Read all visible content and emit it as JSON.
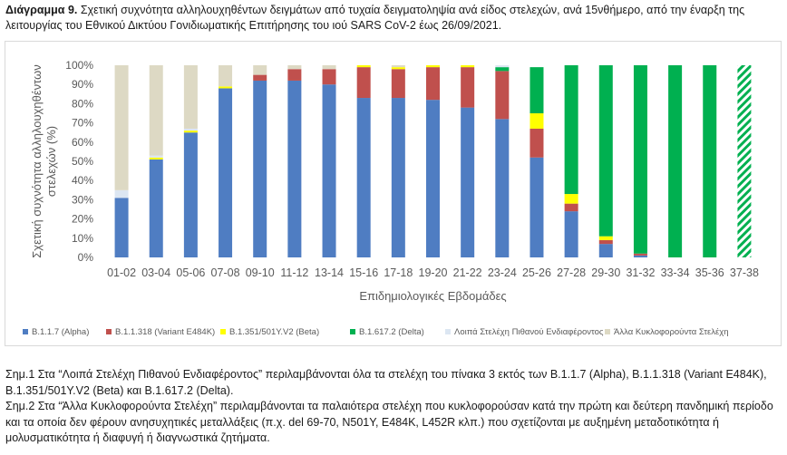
{
  "title": {
    "prefix": "Διάγραμμα 9.",
    "text": "Σχετική συχνότητα αλληλουχηθέντων δειγμάτων από τυχαία δειγματοληψία ανά είδος στελεχών, ανά 15νθήμερο, από την έναρξη της λειτουργίας του Εθνικού Δικτύου Γονιδιωματικής Επιτήρησης του ιού SARS CoV-2 έως 26/09/2021."
  },
  "chart_data": {
    "type": "bar",
    "stacked": true,
    "xlabel": "Επιδημιολογικές Εβδομάδες",
    "ylabel": "Σχετική συχνότητα αλληλουχηθέντων στελεχών (%)",
    "ylim": [
      0,
      100
    ],
    "yticks": [
      "0%",
      "10%",
      "20%",
      "30%",
      "40%",
      "50%",
      "60%",
      "70%",
      "80%",
      "90%",
      "100%"
    ],
    "grid": false,
    "legend_position": "bottom",
    "categories": [
      "01-02",
      "03-04",
      "05-06",
      "07-08",
      "09-10",
      "11-12",
      "13-14",
      "15-16",
      "17-18",
      "19-20",
      "21-22",
      "23-24",
      "25-26",
      "27-28",
      "29-30",
      "31-32",
      "33-34",
      "35-36",
      "37-38"
    ],
    "series": [
      {
        "name": "B.1.1.7 (Alpha)",
        "color": "#4f7dc2",
        "values": [
          31,
          51,
          65,
          88,
          92,
          92,
          90,
          83,
          83,
          82,
          78,
          72,
          52,
          24,
          7,
          1,
          0,
          0,
          0
        ]
      },
      {
        "name": "B.1.1.318 (Variant E484K)",
        "color": "#c0504d",
        "values": [
          0,
          0,
          0,
          0,
          3,
          6,
          8,
          16,
          15,
          17,
          21,
          25,
          15,
          4,
          2,
          1,
          0,
          0,
          0
        ]
      },
      {
        "name": "B.1.351/501Y.V2 (Beta)",
        "color": "#ffff00",
        "values": [
          0,
          1,
          1,
          1,
          0,
          0,
          0,
          1,
          1,
          1,
          1,
          0,
          8,
          5,
          2,
          0,
          0,
          0,
          0
        ]
      },
      {
        "name": "B.1.617.2 (Delta)",
        "color": "#00b050",
        "values": [
          0,
          0,
          0,
          0,
          0,
          0,
          0,
          0,
          0,
          0,
          0,
          2,
          24,
          67,
          89,
          98,
          100,
          100,
          100
        ]
      },
      {
        "name": "Λοιπά Στελέχη Πιθανού Ενδιαφέροντος",
        "color": "#dce6f2",
        "values": [
          4,
          1,
          1,
          0,
          0,
          0,
          0,
          0,
          0,
          0,
          0,
          1,
          0,
          0,
          0,
          0,
          0,
          0,
          0
        ]
      },
      {
        "name": "Άλλα Κυκλοφορούντα Στελέχη",
        "color": "#ddd9c4",
        "values": [
          65,
          47,
          33,
          11,
          5,
          2,
          2,
          0,
          1,
          0,
          0,
          0,
          0,
          0,
          0,
          0,
          0,
          0,
          0
        ]
      }
    ],
    "hatched_categories": [
      "37-38"
    ]
  },
  "notes": [
    "Σημ.1 Στα “Λοιπά Στελέχη Πιθανού Ενδιαφέροντος” περιλαμβάνονται όλα τα στελέχη του πίνακα 3 εκτός των B.1.1.7 (Alpha), B.1.1.318 (Variant E484K), B.1.351/501Y.V2 (Beta) και B.1.617.2 (Delta).",
    "Σημ.2 Στα “Άλλα Κυκλοφορούντα Στελέχη” περιλαμβάνονται τα παλαιότερα στελέχη που κυκλοφορούσαν κατά την πρώτη και δεύτερη πανδημική περίοδο και τα οποία δεν φέρουν ανησυχητικές μεταλλάξεις (π.χ. del 69-70, N501Y, E484K, L452R κλπ.) που σχετίζονται με αυξημένη μεταδοτικότητα ή μολυσματικότητα ή διαφυγή ή διαγνωστικά ζητήματα."
  ]
}
